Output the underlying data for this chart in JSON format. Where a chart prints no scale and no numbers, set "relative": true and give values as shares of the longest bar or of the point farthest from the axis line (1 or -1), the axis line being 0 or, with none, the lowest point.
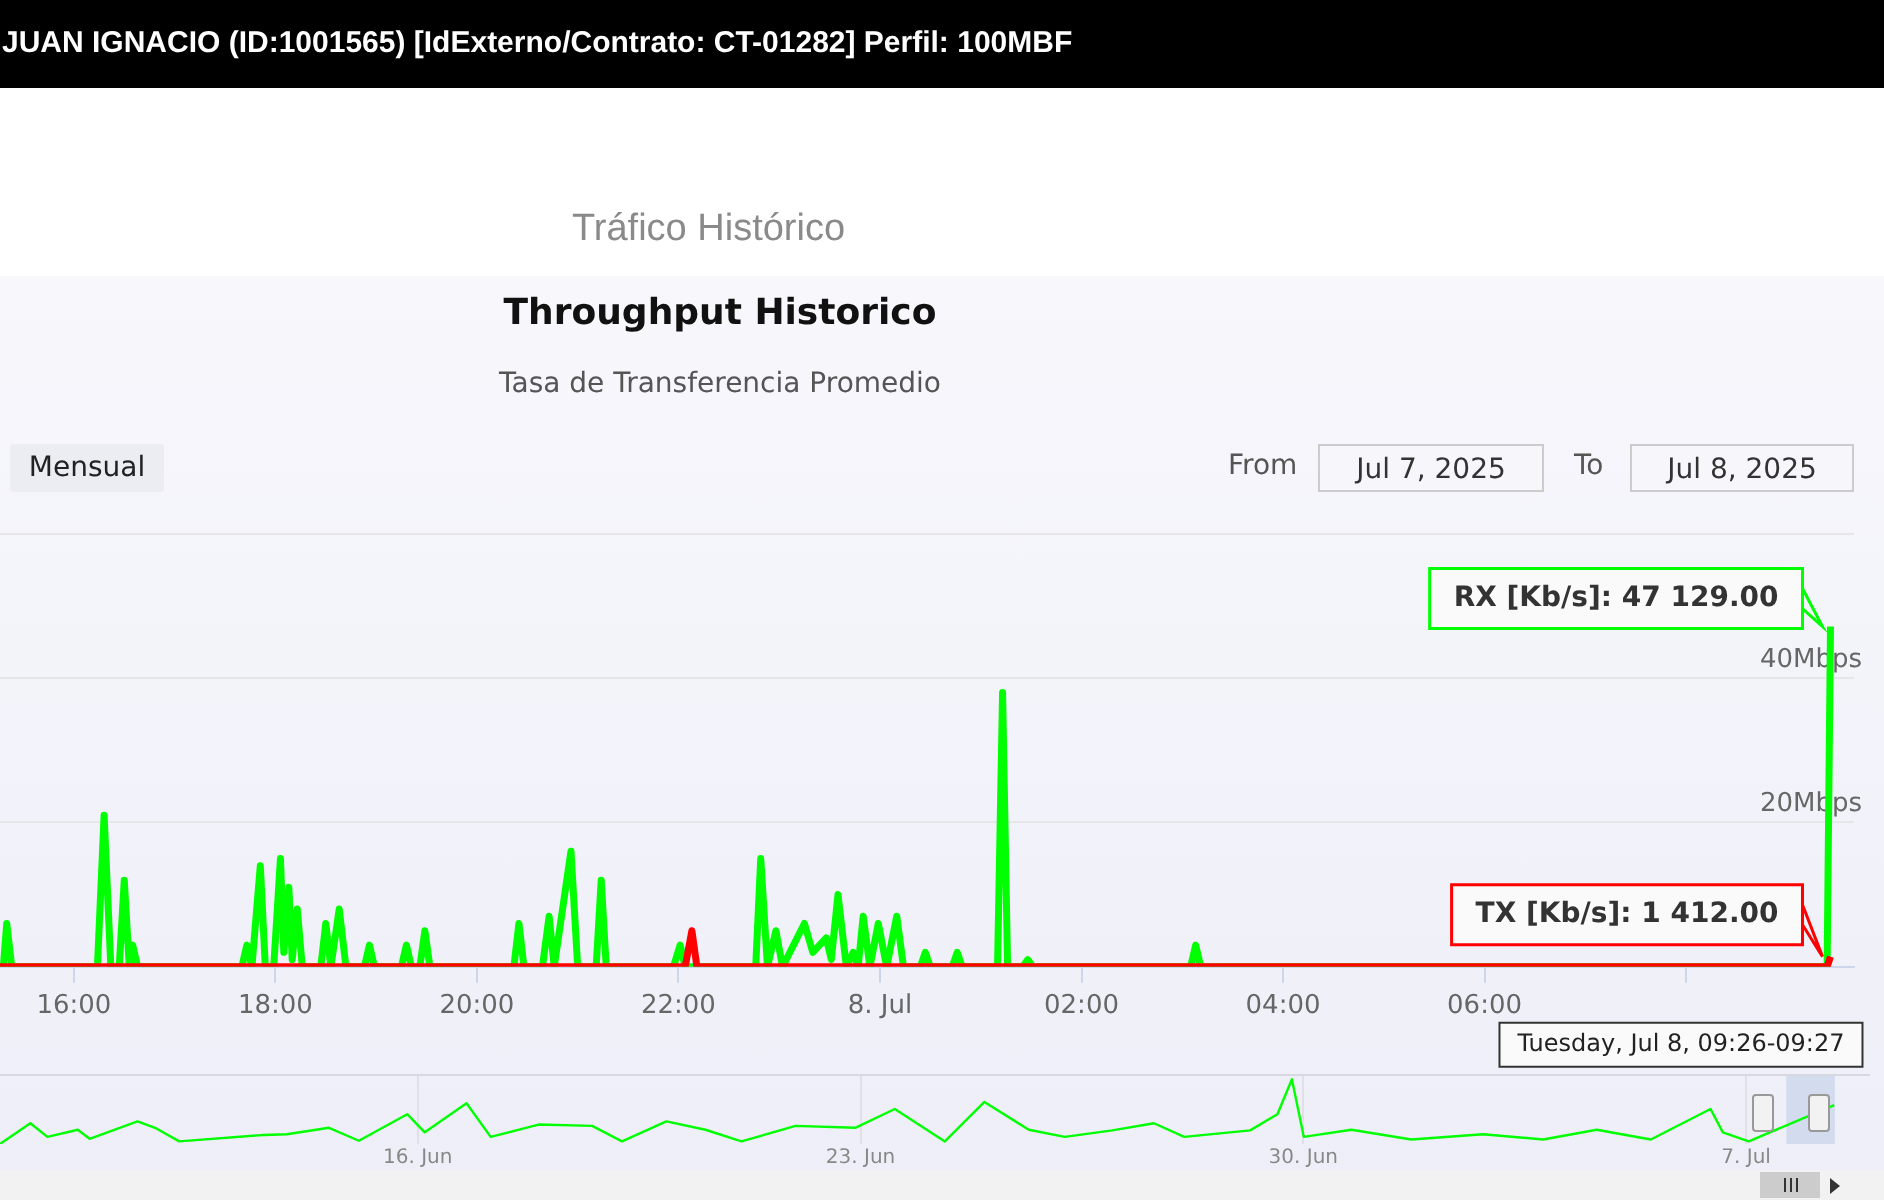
{
  "chart_data": [
    {
      "type": "line",
      "title": "Throughput Historico",
      "subtitle": "Tasa de Transferencia Promedio",
      "annotations": [
        "JUAN IGNACIO (ID:1001565) [IdExterno/Contrato: CT-01282] Perfil: 100MBF",
        "Tráfico Histórico",
        "Mensual",
        "From",
        "Jul 7, 2025",
        "To",
        "Jul 8, 2025",
        {
          "text": "RX [Kb/s]: 47 129.00",
          "x": "2025-07-08T09:26",
          "y": 47.129
        },
        {
          "text": "TX [Kb/s]: 1 412.00",
          "x": "2025-07-08T09:26",
          "y": 1.412
        },
        {
          "text": "Tuesday, Jul 8, 09:26-09:27",
          "x": "2025-07-08T09:26",
          "y": 0
        }
      ],
      "xlim": [
        "2025-07-07T15:16",
        "2025-07-08T09:40"
      ],
      "xticks": [
        {
          "value": "2025-07-07T16:00",
          "label": "16:00"
        },
        {
          "value": "2025-07-07T18:00",
          "label": "18:00"
        },
        {
          "value": "2025-07-07T20:00",
          "label": "20:00"
        },
        {
          "value": "2025-07-07T22:00",
          "label": "22:00"
        },
        {
          "value": "2025-07-08T00:00",
          "label": "8. Jul"
        },
        {
          "value": "2025-07-08T02:00",
          "label": "02:00"
        },
        {
          "value": "2025-07-08T04:00",
          "label": "04:00"
        },
        {
          "value": "2025-07-08T06:00",
          "label": "06:00"
        },
        {
          "value": "2025-07-08T08:00",
          "label": null
        }
      ],
      "ylim": [
        0,
        60
      ],
      "yticks": [
        {
          "value": 0,
          "label": null
        },
        {
          "value": 20,
          "label": "20Mbps"
        },
        {
          "value": 40,
          "label": "40Mbps"
        },
        {
          "value": 60,
          "label": null
        }
      ],
      "grid": "y",
      "series": [
        {
          "color": "#00ff00",
          "x": [
            "2025-07-07T15:16",
            "2025-07-07T15:18",
            "2025-07-07T15:20",
            "2025-07-07T15:23",
            "2025-07-07T16:14",
            "2025-07-07T16:18",
            "2025-07-07T16:22",
            "2025-07-07T16:27",
            "2025-07-07T16:30",
            "2025-07-07T16:33",
            "2025-07-07T16:35",
            "2025-07-07T16:38",
            "2025-07-07T17:40",
            "2025-07-07T17:43",
            "2025-07-07T17:46",
            "2025-07-07T17:51",
            "2025-07-07T17:54",
            "2025-07-07T17:59",
            "2025-07-07T18:03",
            "2025-07-07T18:05",
            "2025-07-07T18:08",
            "2025-07-07T18:10",
            "2025-07-07T18:13",
            "2025-07-07T18:16",
            "2025-07-07T18:27",
            "2025-07-07T18:30",
            "2025-07-07T18:33",
            "2025-07-07T18:38",
            "2025-07-07T18:42",
            "2025-07-07T18:53",
            "2025-07-07T18:56",
            "2025-07-07T18:59",
            "2025-07-07T19:15",
            "2025-07-07T19:18",
            "2025-07-07T19:21",
            "2025-07-07T19:26",
            "2025-07-07T19:29",
            "2025-07-07T19:32",
            "2025-07-07T20:22",
            "2025-07-07T20:25",
            "2025-07-07T20:28",
            "2025-07-07T20:39",
            "2025-07-07T20:43",
            "2025-07-07T20:46",
            "2025-07-07T20:56",
            "2025-07-07T21:00",
            "2025-07-07T21:11",
            "2025-07-07T21:14",
            "2025-07-07T21:17",
            "2025-07-07T21:57",
            "2025-07-07T22:01",
            "2025-07-07T22:04",
            "2025-07-07T22:46",
            "2025-07-07T22:49",
            "2025-07-07T22:53",
            "2025-07-07T22:58",
            "2025-07-07T23:02",
            "2025-07-07T23:15",
            "2025-07-07T23:20",
            "2025-07-07T23:28",
            "2025-07-07T23:31",
            "2025-07-07T23:35",
            "2025-07-07T23:40",
            "2025-07-07T23:44",
            "2025-07-07T23:47",
            "2025-07-07T23:50",
            "2025-07-07T23:54",
            "2025-07-07T23:59",
            "2025-07-08T00:04",
            "2025-07-08T00:10",
            "2025-07-08T00:14",
            "2025-07-08T00:24",
            "2025-07-08T00:27",
            "2025-07-08T00:30",
            "2025-07-08T00:43",
            "2025-07-08T00:46",
            "2025-07-08T00:49",
            "2025-07-08T01:10",
            "2025-07-08T01:13",
            "2025-07-08T01:16",
            "2025-07-08T01:25",
            "2025-07-08T01:28",
            "2025-07-08T01:31",
            "2025-07-08T03:05",
            "2025-07-08T03:08",
            "2025-07-08T03:11",
            "2025-07-08T09:24",
            "2025-07-08T09:26"
          ],
          "values": [
            0,
            0,
            6,
            0,
            0,
            21,
            0,
            0,
            12,
            0,
            3,
            0,
            0,
            3,
            0,
            14,
            0,
            0,
            15,
            2,
            11,
            1,
            8,
            0,
            0,
            6,
            0,
            8,
            0,
            0,
            3,
            0,
            0,
            3,
            0,
            0,
            5,
            0,
            0,
            6,
            0,
            0,
            7,
            0,
            16,
            0,
            0,
            12,
            0,
            0,
            3,
            0,
            0,
            15,
            0,
            5,
            0,
            6,
            2,
            4,
            1,
            10,
            0,
            2,
            0,
            7,
            0,
            6,
            0,
            7,
            0,
            0,
            2,
            0,
            0,
            2,
            0,
            0,
            38,
            0,
            0,
            1,
            0,
            0,
            3,
            0,
            0,
            47.129
          ]
        },
        {
          "color": "#ff0000",
          "x": [
            "2025-07-07T15:16",
            "2025-07-07T22:04",
            "2025-07-07T22:08",
            "2025-07-07T22:11",
            "2025-07-08T09:24",
            "2025-07-08T09:26"
          ],
          "values": [
            0,
            0,
            5,
            0,
            0,
            1.412
          ]
        }
      ]
    },
    {
      "type": "line",
      "relative": true,
      "grid": "x",
      "xlim": [
        "2025-06-09T09:30",
        "2025-07-08T23:00"
      ],
      "xticks": [
        {
          "value": "2025-06-16T00:00",
          "label": "16. Jun"
        },
        {
          "value": "2025-06-23T00:00",
          "label": "23. Jun"
        },
        {
          "value": "2025-06-30T00:00",
          "label": "30. Jun"
        },
        {
          "value": "2025-07-07T00:00",
          "label": "7. Jul"
        }
      ],
      "bands": [
        {
          "axis": "x",
          "from": "2025-07-07T15:16",
          "to": "2025-07-08T09:40",
          "color": "#ccd6eb"
        }
      ],
      "series": [
        {
          "color": "#00ff00",
          "x": [
            "2025-06-09T09:30",
            "2025-06-09T21:00",
            "2025-06-10T03:30",
            "2025-06-10T15:00",
            "2025-06-10T19:30",
            "2025-06-11T13:40",
            "2025-06-11T20:20",
            "2025-06-12T05:30",
            "2025-06-13T13:30",
            "2025-06-13T22:20",
            "2025-06-14T14:20",
            "2025-06-15T01:40",
            "2025-06-15T20:00",
            "2025-06-16T02:40",
            "2025-06-16T18:30",
            "2025-06-17T03:40",
            "2025-06-17T21:50",
            "2025-06-18T18:10",
            "2025-06-19T05:30",
            "2025-06-19T22:20",
            "2025-06-20T13:10",
            "2025-06-21T02:50",
            "2025-06-21T23:20",
            "2025-06-22T22:00",
            "2025-06-23T13:00",
            "2025-06-24T08:00",
            "2025-06-24T23:00",
            "2025-06-25T15:50",
            "2025-06-26T05:30",
            "2025-06-26T23:30",
            "2025-06-27T15:20",
            "2025-06-28T02:50",
            "2025-06-29T03:50",
            "2025-06-29T14:10",
            "2025-06-29T19:40",
            "2025-06-30T00:10",
            "2025-06-30T18:15",
            "2025-07-01T17:00",
            "2025-07-02T20:10",
            "2025-07-03T19:00",
            "2025-07-04T15:20",
            "2025-07-05T11:50",
            "2025-07-06T10:30",
            "2025-07-06T15:10",
            "2025-07-07T01:00",
            "2025-07-08T09:26"
          ],
          "values": [
            0,
            0.32,
            0.11,
            0.22,
            0.08,
            0.35,
            0.25,
            0.04,
            0.14,
            0.15,
            0.25,
            0.05,
            0.46,
            0.18,
            0.63,
            0.11,
            0.3,
            0.28,
            0.04,
            0.35,
            0.22,
            0.04,
            0.28,
            0.25,
            0.54,
            0.04,
            0.65,
            0.22,
            0.11,
            0.21,
            0.32,
            0.11,
            0.21,
            0.46,
            1,
            0.11,
            0.22,
            0.07,
            0.15,
            0.07,
            0.22,
            0.07,
            0.54,
            0.18,
            0.04,
            0.6
          ]
        }
      ]
    }
  ]
}
